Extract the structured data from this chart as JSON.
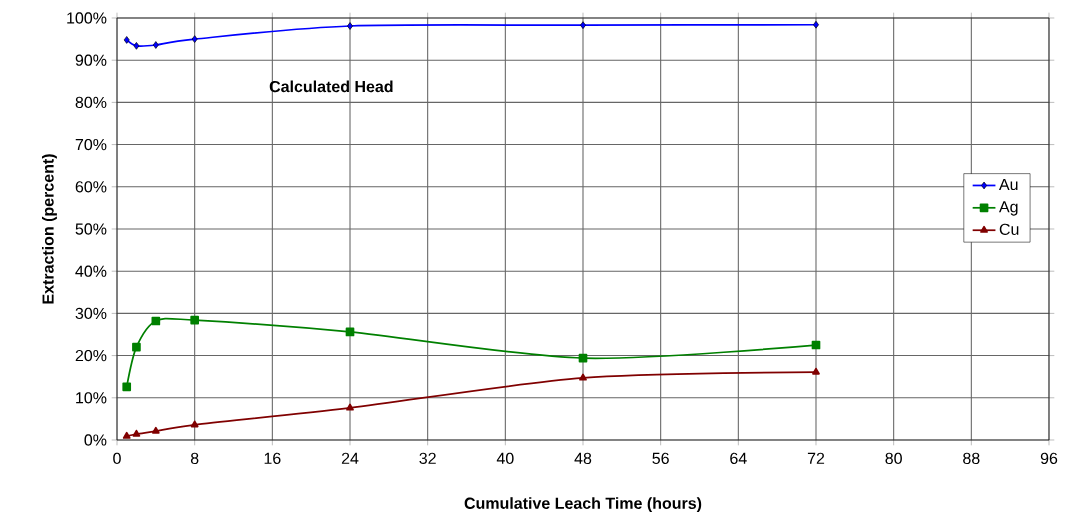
{
  "chart_data": {
    "type": "line",
    "xlabel": "Cumulative Leach Time (hours)",
    "ylabel": "Extraction (percent)",
    "annotations": [
      "Calculated Head"
    ],
    "x": [
      1,
      2,
      4,
      8,
      24,
      48,
      72
    ],
    "series": [
      {
        "name": "Au",
        "color": "#0000ff",
        "marker": "diamond",
        "values": [
          94.8,
          93.4,
          93.6,
          95.0,
          98.1,
          98.3,
          98.4
        ]
      },
      {
        "name": "Ag",
        "color": "#008000",
        "marker": "square",
        "values": [
          12.6,
          22.0,
          28.2,
          28.4,
          25.6,
          19.4,
          22.5
        ]
      },
      {
        "name": "Cu",
        "color": "#800000",
        "marker": "triangle",
        "values": [
          0.9,
          1.4,
          2.1,
          3.6,
          7.6,
          14.7,
          16.1
        ]
      }
    ],
    "xlim": [
      0,
      96
    ],
    "xticks": [
      0,
      8,
      16,
      24,
      32,
      40,
      48,
      56,
      64,
      72,
      80,
      88,
      96
    ],
    "ylim": [
      0,
      100
    ],
    "yticks": [
      {
        "value": 0,
        "label": "0%"
      },
      {
        "value": 10,
        "label": "10%"
      },
      {
        "value": 20,
        "label": "20%"
      },
      {
        "value": 30,
        "label": "30%"
      },
      {
        "value": 40,
        "label": "40%"
      },
      {
        "value": 50,
        "label": "50%"
      },
      {
        "value": 60,
        "label": "60%"
      },
      {
        "value": 70,
        "label": "70%"
      },
      {
        "value": 80,
        "label": "80%"
      },
      {
        "value": 90,
        "label": "90%"
      },
      {
        "value": 100,
        "label": "100%"
      }
    ],
    "grid": true,
    "legend": "right",
    "line_style": "solid"
  }
}
